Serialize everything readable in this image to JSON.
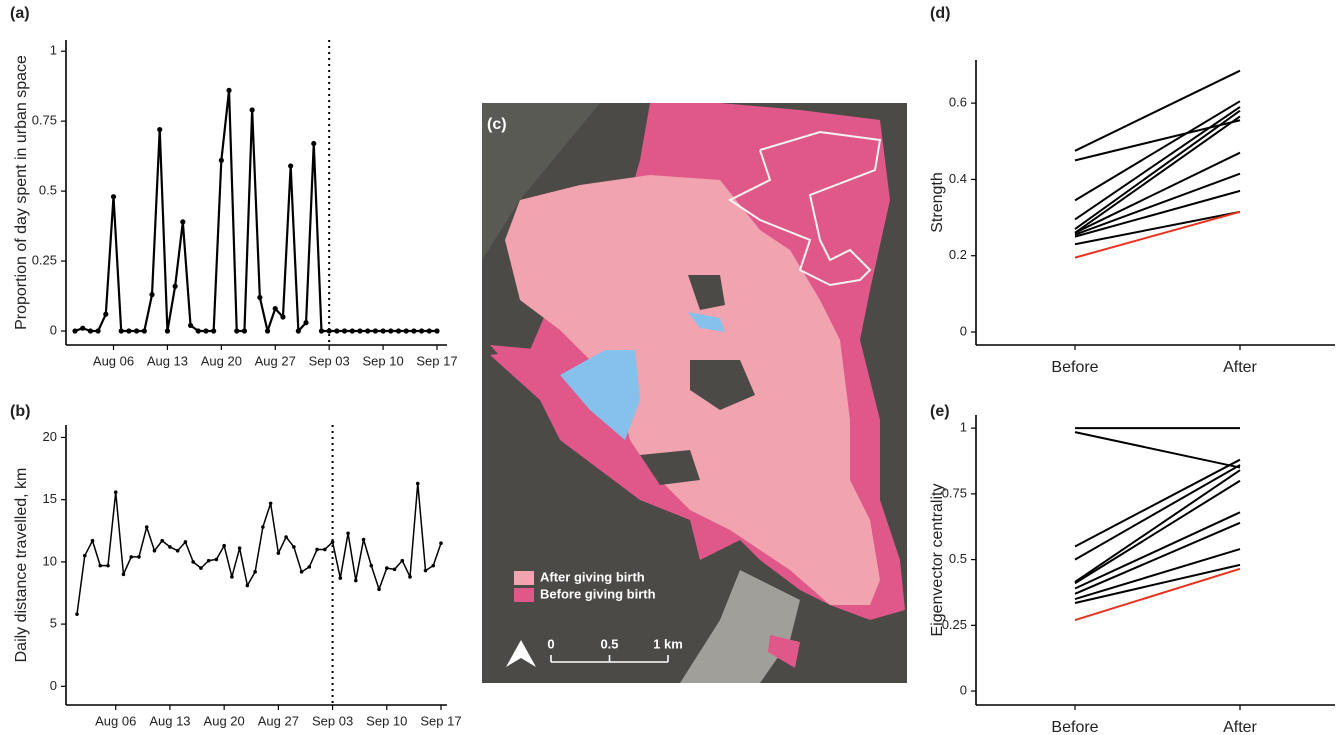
{
  "chart_data": [
    {
      "type": "line",
      "panel_label": "(a)",
      "ylabel": "Proportion of day spent in urban space",
      "color": "#000000",
      "x": [
        "Aug 01",
        "Aug 02",
        "Aug 03",
        "Aug 04",
        "Aug 05",
        "Aug 06",
        "Aug 07",
        "Aug 08",
        "Aug 09",
        "Aug 10",
        "Aug 11",
        "Aug 12",
        "Aug 13",
        "Aug 14",
        "Aug 15",
        "Aug 16",
        "Aug 17",
        "Aug 18",
        "Aug 19",
        "Aug 20",
        "Aug 21",
        "Aug 22",
        "Aug 23",
        "Aug 24",
        "Aug 25",
        "Aug 26",
        "Aug 27",
        "Aug 28",
        "Aug 29",
        "Aug 30",
        "Aug 31",
        "Sep 01",
        "Sep 02",
        "Sep 03",
        "Sep 04",
        "Sep 05",
        "Sep 06",
        "Sep 07",
        "Sep 08",
        "Sep 09",
        "Sep 10",
        "Sep 11",
        "Sep 12",
        "Sep 13",
        "Sep 14",
        "Sep 15",
        "Sep 16",
        "Sep 17"
      ],
      "values": [
        0,
        0.01,
        0,
        0,
        0.06,
        0.48,
        0,
        0,
        0,
        0,
        0.13,
        0.72,
        0,
        0.16,
        0.39,
        0.02,
        0,
        0,
        0,
        0.61,
        0.86,
        0,
        0,
        0.79,
        0.12,
        0,
        0.08,
        0.05,
        0.59,
        0,
        0.03,
        0.67,
        0,
        0,
        0,
        0,
        0,
        0,
        0,
        0,
        0,
        0,
        0,
        0,
        0,
        0,
        0,
        0
      ],
      "xticks": [
        "Aug 06",
        "Aug 13",
        "Aug 20",
        "Aug 27",
        "Sep 03",
        "Sep 10",
        "Sep 17"
      ],
      "vline": "Sep 03",
      "ylim": [
        -0.05,
        1.04
      ],
      "yticks": [
        0,
        0.25,
        0.5,
        0.75,
        1
      ]
    },
    {
      "type": "line",
      "panel_label": "(b)",
      "ylabel": "Daily distance travelled, km",
      "color": "#000000",
      "x": [
        "Aug 01",
        "Aug 02",
        "Aug 03",
        "Aug 04",
        "Aug 05",
        "Aug 06",
        "Aug 07",
        "Aug 08",
        "Aug 09",
        "Aug 10",
        "Aug 11",
        "Aug 12",
        "Aug 13",
        "Aug 14",
        "Aug 15",
        "Aug 16",
        "Aug 17",
        "Aug 18",
        "Aug 19",
        "Aug 20",
        "Aug 21",
        "Aug 22",
        "Aug 23",
        "Aug 24",
        "Aug 25",
        "Aug 26",
        "Aug 27",
        "Aug 28",
        "Aug 29",
        "Aug 30",
        "Aug 31",
        "Sep 01",
        "Sep 02",
        "Sep 03",
        "Sep 04",
        "Sep 05",
        "Sep 06",
        "Sep 07",
        "Sep 08",
        "Sep 09",
        "Sep 10",
        "Sep 11",
        "Sep 12",
        "Sep 13",
        "Sep 14",
        "Sep 15",
        "Sep 16",
        "Sep 17"
      ],
      "values": [
        5.8,
        10.5,
        11.7,
        9.7,
        9.7,
        15.6,
        9.0,
        10.4,
        10.4,
        12.8,
        10.9,
        11.7,
        11.2,
        10.9,
        11.6,
        10.0,
        9.5,
        10.1,
        10.2,
        11.3,
        8.8,
        11.1,
        8.1,
        9.2,
        12.8,
        14.7,
        10.7,
        12.0,
        11.2,
        9.2,
        9.6,
        11.0,
        11.0,
        11.6,
        8.7,
        12.3,
        8.5,
        11.8,
        9.7,
        7.8,
        9.5,
        9.4,
        10.1,
        8.8,
        16.3,
        9.3,
        9.7,
        11.5
      ],
      "xticks": [
        "Aug 06",
        "Aug 13",
        "Aug 20",
        "Aug 27",
        "Sep 03",
        "Sep 10",
        "Sep 17"
      ],
      "vline": "Sep 03",
      "ylim": [
        -1.5,
        21
      ],
      "yticks": [
        0,
        5,
        10,
        15,
        20
      ]
    },
    {
      "type": "map",
      "panel_label": "(c)",
      "series": [
        {
          "name": "After giving birth",
          "color": "#f2a3b0"
        },
        {
          "name": "Before giving birth",
          "color": "#e05889"
        }
      ],
      "scale_ticks": [
        0,
        0.5,
        {
          "value": 1,
          "label": "1 km"
        }
      ]
    },
    {
      "type": "slope",
      "panel_label": "(d)",
      "ylabel": "Strength",
      "categories": [
        "Before",
        "After"
      ],
      "series": [
        {
          "color": "#000000",
          "values": [
            0.475,
            0.685
          ]
        },
        {
          "color": "#000000",
          "values": [
            0.45,
            0.555
          ]
        },
        {
          "color": "#000000",
          "values": [
            0.345,
            0.605
          ]
        },
        {
          "color": "#000000",
          "values": [
            0.295,
            0.59
          ]
        },
        {
          "color": "#000000",
          "values": [
            0.27,
            0.58
          ]
        },
        {
          "color": "#000000",
          "values": [
            0.26,
            0.565
          ]
        },
        {
          "color": "#000000",
          "values": [
            0.26,
            0.47
          ]
        },
        {
          "color": "#000000",
          "values": [
            0.255,
            0.415
          ]
        },
        {
          "color": "#000000",
          "values": [
            0.25,
            0.37
          ]
        },
        {
          "color": "#000000",
          "values": [
            0.23,
            0.315
          ]
        },
        {
          "color": "#e8321e",
          "values": [
            0.195,
            0.315
          ]
        }
      ],
      "ylim": [
        -0.034,
        0.713
      ],
      "yticks": [
        0,
        0.2,
        0.4,
        0.6
      ]
    },
    {
      "type": "slope",
      "panel_label": "(e)",
      "ylabel": "Eigenvector centrality",
      "categories": [
        "Before",
        "After"
      ],
      "series": [
        {
          "color": "#000000",
          "values": [
            1,
            1
          ]
        },
        {
          "color": "#000000",
          "values": [
            0.985,
            0.85
          ]
        },
        {
          "color": "#000000",
          "values": [
            0.55,
            0.88
          ]
        },
        {
          "color": "#000000",
          "values": [
            0.5,
            0.86
          ]
        },
        {
          "color": "#000000",
          "values": [
            0.415,
            0.84
          ]
        },
        {
          "color": "#000000",
          "values": [
            0.41,
            0.8
          ]
        },
        {
          "color": "#000000",
          "values": [
            0.39,
            0.68
          ]
        },
        {
          "color": "#000000",
          "values": [
            0.37,
            0.64
          ]
        },
        {
          "color": "#000000",
          "values": [
            0.35,
            0.54
          ]
        },
        {
          "color": "#000000",
          "values": [
            0.335,
            0.48
          ]
        },
        {
          "color": "#e8321e",
          "values": [
            0.27,
            0.465
          ]
        }
      ],
      "ylim": [
        -0.053,
        1.05
      ],
      "yticks": [
        0,
        0.25,
        0.5,
        0.75,
        1
      ]
    }
  ]
}
